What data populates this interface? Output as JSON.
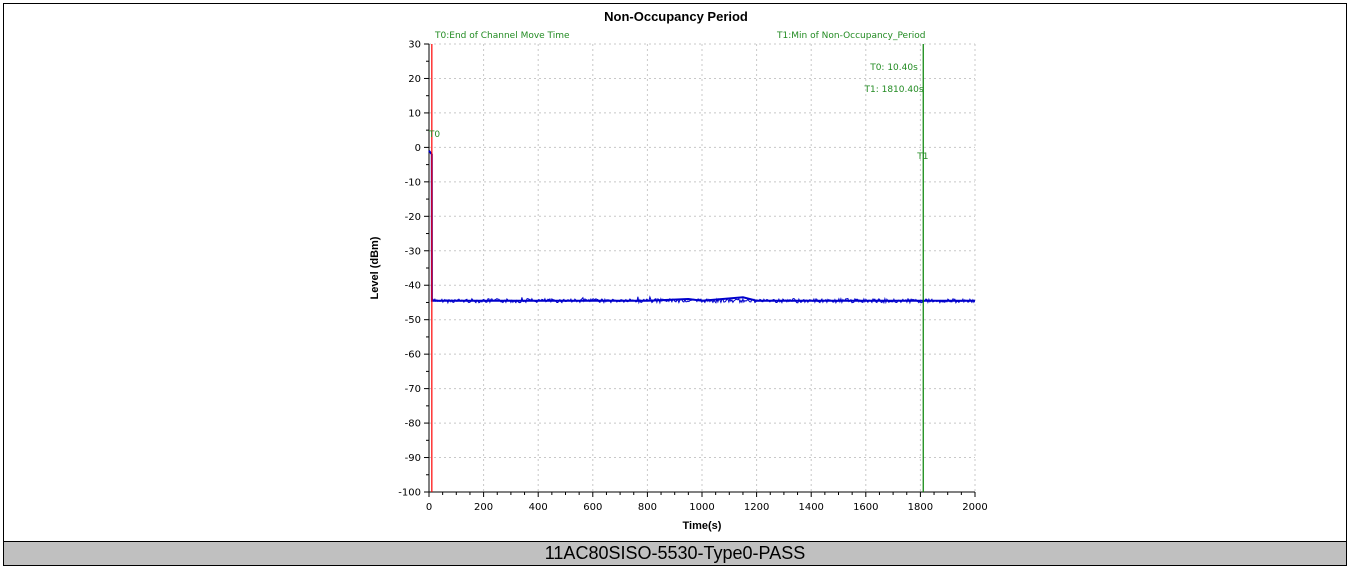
{
  "caption": "11AC80SISO-5530-Type0-PASS",
  "colors": {
    "series": "#0000cc",
    "t0": "#ff0000",
    "t1": "#008000",
    "marker_text": "#228b22",
    "grid": "#c8c8c8",
    "caption_bg": "#c0c0c0"
  },
  "chart_data": {
    "type": "line",
    "title": "Non-Occupancy Period",
    "xlabel": "Time(s)",
    "ylabel": "Level (dBm)",
    "xlim": [
      0,
      2000
    ],
    "ylim": [
      -100,
      30
    ],
    "x_ticks": [
      0,
      200,
      400,
      600,
      800,
      1000,
      1200,
      1400,
      1600,
      1800,
      2000
    ],
    "y_ticks": [
      30,
      20,
      10,
      0,
      -10,
      -20,
      -30,
      -40,
      -50,
      -60,
      -70,
      -80,
      -90,
      -100
    ],
    "grid": true,
    "series": [
      {
        "x": [
          0,
          10.4,
          10.5,
          200,
          400,
          600,
          800,
          950,
          1000,
          1150,
          1200,
          1400,
          1600,
          1800,
          2000
        ],
        "y": [
          -1,
          -2,
          -44.5,
          -44.5,
          -44.5,
          -44.5,
          -44.5,
          -44,
          -44.5,
          -43.5,
          -44.5,
          -44.5,
          -44.5,
          -44.5,
          -44.5
        ]
      }
    ],
    "markers": [
      {
        "id": "T0",
        "x": 10.4,
        "label": "T0",
        "legend": "T0:End of Channel Move Time",
        "value_text": "T0: 10.40s"
      },
      {
        "id": "T1",
        "x": 1810.4,
        "label": "T1",
        "legend": "T1:Min of Non-Occupancy_Period",
        "value_text": "T1: 1810.40s"
      }
    ]
  }
}
